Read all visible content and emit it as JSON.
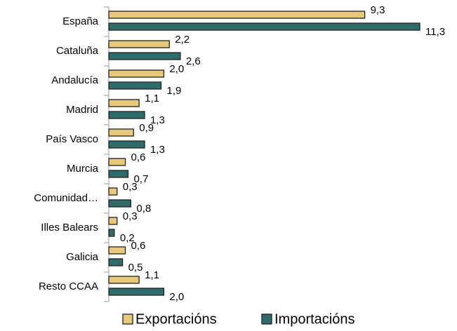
{
  "chart_data": {
    "type": "bar",
    "orientation": "horizontal",
    "categories": [
      "España",
      "Cataluña",
      "Andalucía",
      "Madrid",
      "País Vasco",
      "Murcia",
      "Comunidad…",
      "Illes Balears",
      "Galicia",
      "Resto CCAA"
    ],
    "series": [
      {
        "name": "Exportacións",
        "color": "#e8c97a",
        "values": [
          9.3,
          2.2,
          2.0,
          1.1,
          0.9,
          0.6,
          0.3,
          0.3,
          0.6,
          1.1
        ],
        "value_labels": [
          "9,3",
          "2,2",
          "2,0",
          "1,1",
          "0,9",
          "0,6",
          "0,3",
          "0,3",
          "0,6",
          "1,1"
        ]
      },
      {
        "name": "Importacións",
        "color": "#2e6b6b",
        "values": [
          11.3,
          2.6,
          1.9,
          1.3,
          1.3,
          0.7,
          0.8,
          0.2,
          0.5,
          2.0
        ],
        "value_labels": [
          "11,3",
          "2,6",
          "1,9",
          "1,3",
          "1,3",
          "0,7",
          "0,8",
          "0,2",
          "0,5",
          "2,0"
        ]
      }
    ]
  }
}
